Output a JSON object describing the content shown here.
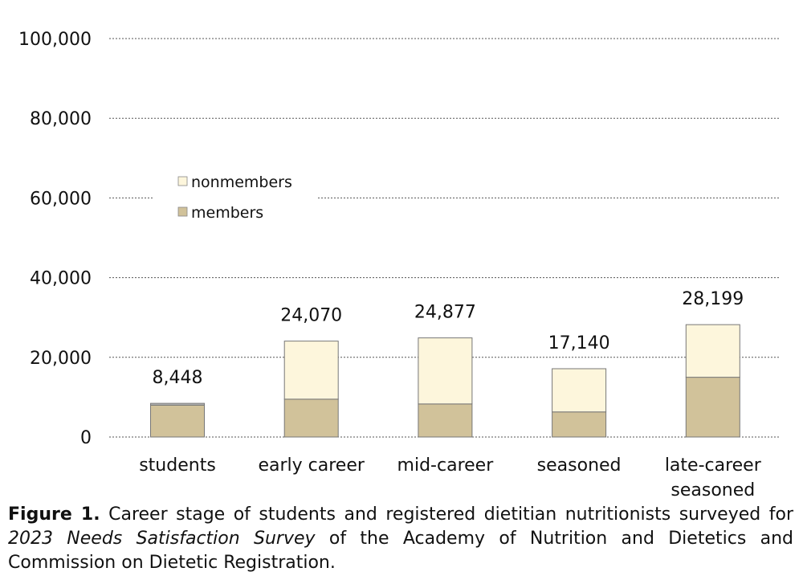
{
  "chart_data": {
    "type": "bar",
    "stacked": true,
    "categories": [
      [
        "students"
      ],
      [
        "early career"
      ],
      [
        "mid-career"
      ],
      [
        "seasoned"
      ],
      [
        "late-career",
        "seasoned"
      ]
    ],
    "series": [
      {
        "name": "members",
        "color": "#d1c29a",
        "values": [
          8000,
          9500,
          8300,
          6300,
          15000
        ]
      },
      {
        "name": "nonmembers",
        "color": "#fdf6dc",
        "values": [
          448,
          14570,
          16577,
          10840,
          13199
        ]
      }
    ],
    "totals": [
      "8,448",
      "24,070",
      "24,877",
      "17,140",
      "28,199"
    ],
    "yticks": [
      "0",
      "20,000",
      "40,000",
      "60,000",
      "80,000",
      "100,000"
    ],
    "ylim": [
      0,
      100000
    ],
    "grid": true,
    "legend": "upper-left inside plot",
    "students_cap_color": "#b8b8b8"
  },
  "caption": {
    "label": "Figure 1.",
    "text1": " Career stage of students and registered dietitian nutritionists surveyed for ",
    "survey": "2023 Needs Satisfaction Survey",
    "text2": " of the Academy of Nutrition and Dietetics and Commission on Dietetic Registration."
  }
}
